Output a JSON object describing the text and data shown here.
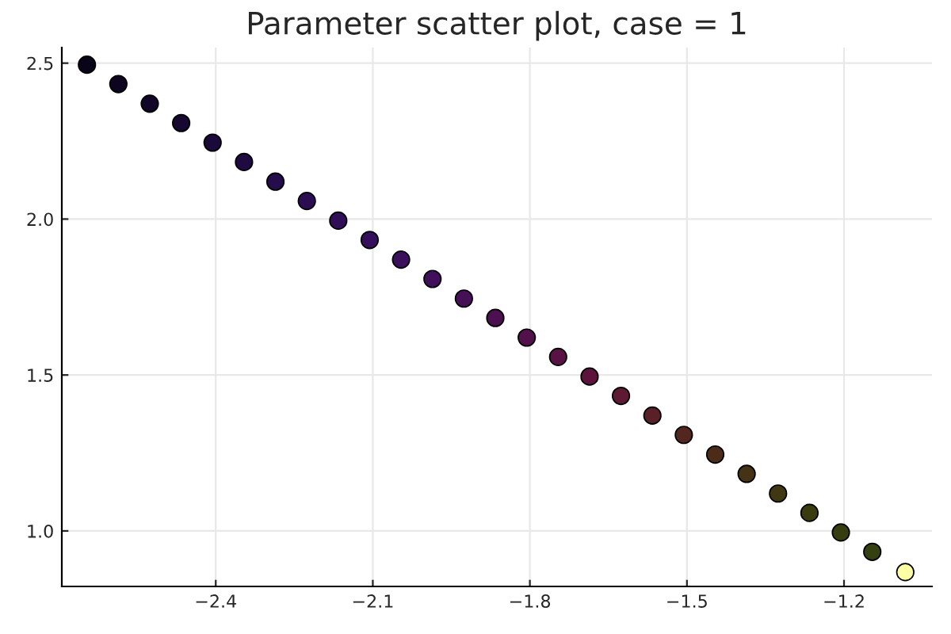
{
  "chart_data": {
    "type": "scatter",
    "title": "Parameter scatter plot, case = 1",
    "x": [
      -2.646,
      -2.586,
      -2.526,
      -2.466,
      -2.406,
      -2.346,
      -2.286,
      -2.226,
      -2.166,
      -2.106,
      -2.046,
      -1.986,
      -1.926,
      -1.866,
      -1.806,
      -1.746,
      -1.686,
      -1.626,
      -1.566,
      -1.506,
      -1.446,
      -1.386,
      -1.326,
      -1.266,
      -1.206,
      -1.146,
      -1.083
    ],
    "values": [
      2.495,
      2.433,
      2.37,
      2.308,
      2.245,
      2.183,
      2.12,
      2.058,
      1.995,
      1.933,
      1.87,
      1.808,
      1.745,
      1.683,
      1.62,
      1.558,
      1.495,
      1.433,
      1.37,
      1.308,
      1.245,
      1.183,
      1.12,
      1.058,
      0.995,
      0.933,
      0.868
    ],
    "colors": [
      "#0a0418",
      "#0d0520",
      "#120628",
      "#160830",
      "#1a0a3a",
      "#1f0b42",
      "#250c4a",
      "#2b0d52",
      "#300e58",
      "#350f5c",
      "#3a105c",
      "#40105a",
      "#461056",
      "#4c1050",
      "#52114a",
      "#581244",
      "#5c143c",
      "#5e1a32",
      "#5a2028",
      "#542620",
      "#4c2c18",
      "#463214",
      "#403812",
      "#3a3c10",
      "#363e10",
      "#34400f",
      "#fcffa4"
    ],
    "marker": "circle",
    "xlim": [
      -2.694,
      -1.032
    ],
    "ylim": [
      0.822,
      2.55
    ],
    "xticks": [
      {
        "value": -2.4,
        "label": "−2.4"
      },
      {
        "value": -2.1,
        "label": "−2.1"
      },
      {
        "value": -1.8,
        "label": "−1.8"
      },
      {
        "value": -1.5,
        "label": "−1.5"
      },
      {
        "value": -1.2,
        "label": "−1.2"
      }
    ],
    "yticks": [
      {
        "value": 1.0,
        "label": "1.0"
      },
      {
        "value": 1.5,
        "label": "1.5"
      },
      {
        "value": 2.0,
        "label": "2.0"
      },
      {
        "value": 2.5,
        "label": "2.5"
      }
    ],
    "grid": true,
    "legend": false
  }
}
